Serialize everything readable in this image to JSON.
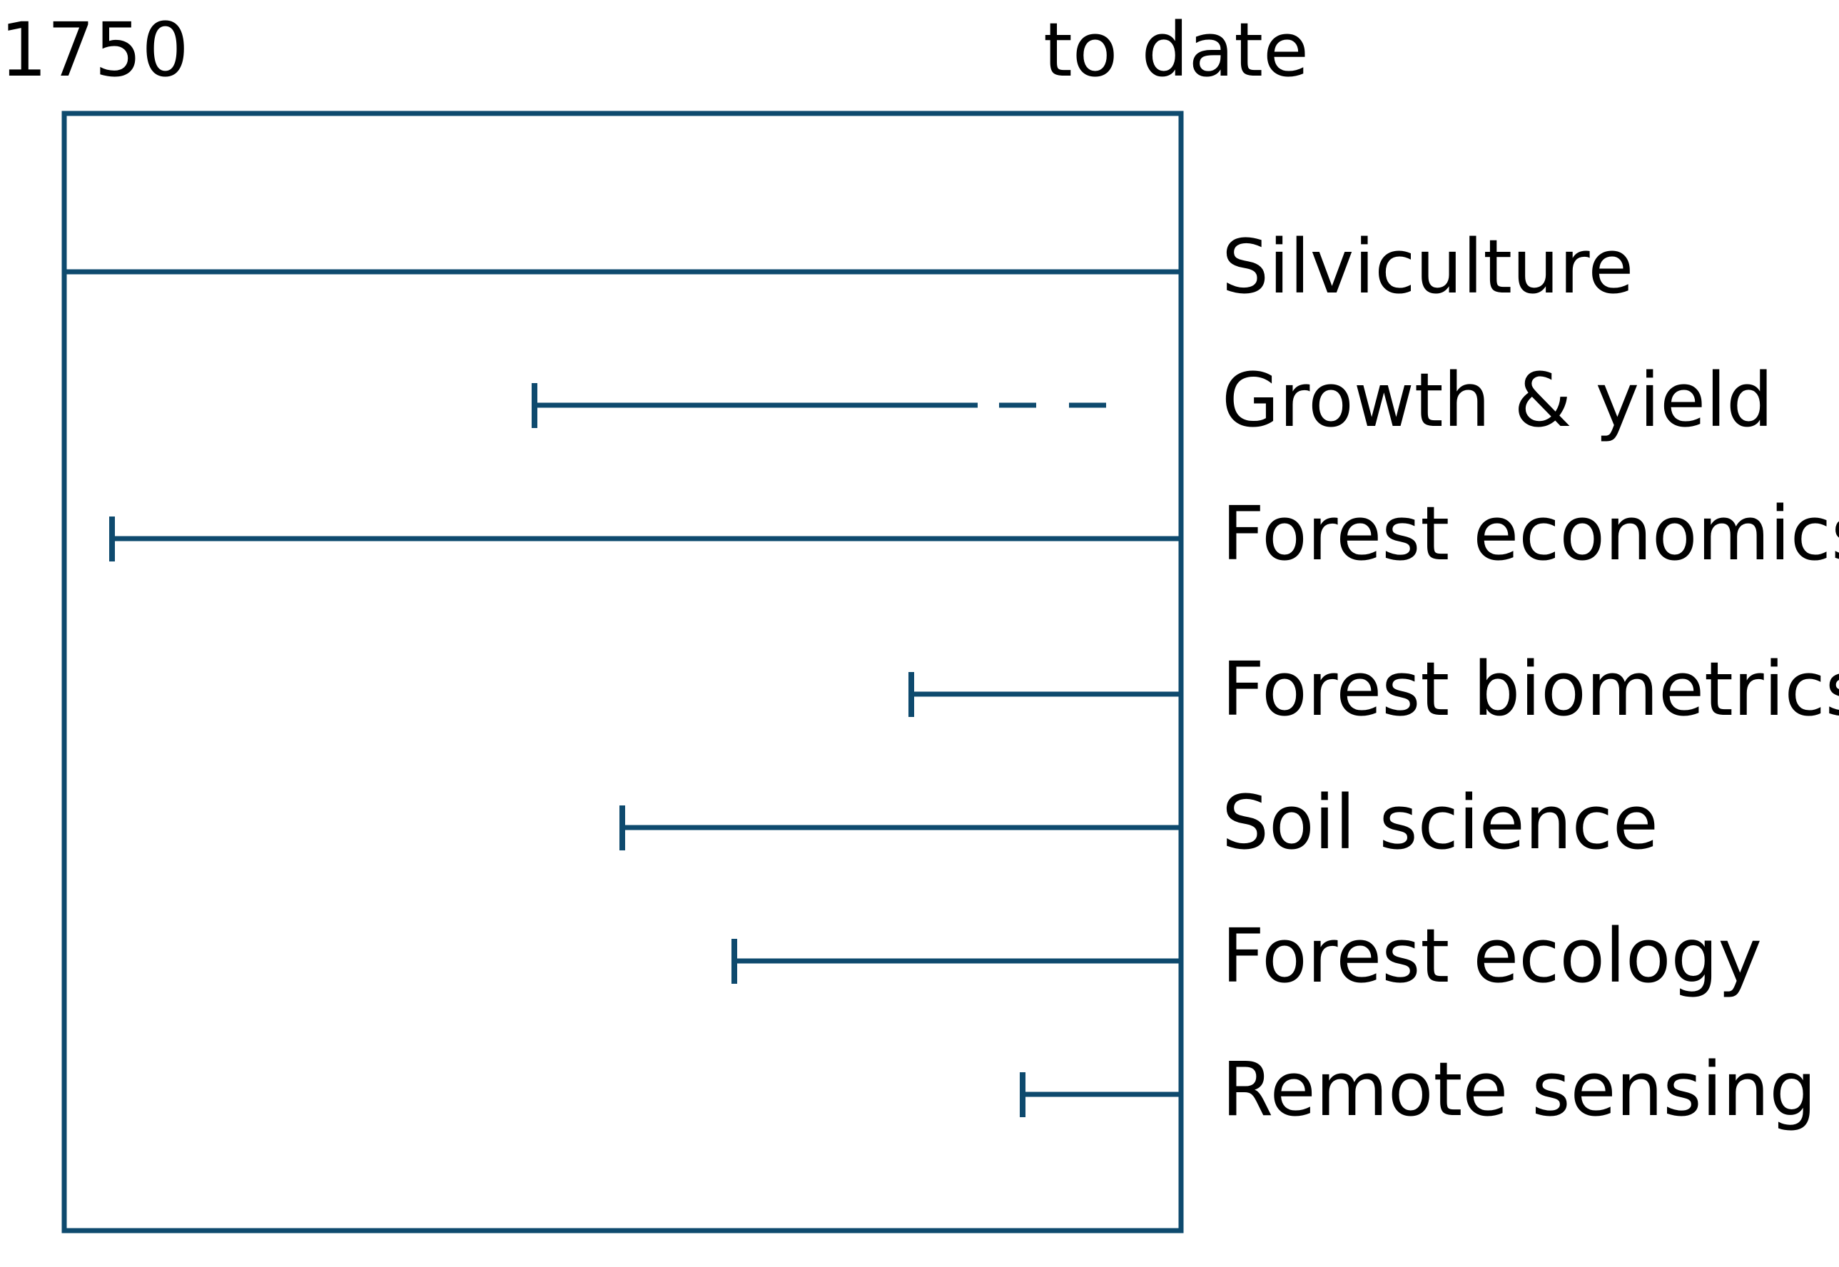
{
  "labels": {
    "start": "1750",
    "end": "to date"
  },
  "colors": {
    "line": "#0e4a6e",
    "text": "#000000",
    "background": "#ffffff"
  },
  "disciplines": [
    {
      "name": "Silviculture",
      "span": "full"
    },
    {
      "name": "Growth & yield",
      "span": "partial",
      "ends_dashed": true
    },
    {
      "name": "Forest economics",
      "span": "partial"
    },
    {
      "name": "Forest biometrics",
      "span": "partial"
    },
    {
      "name": "Soil science",
      "span": "partial"
    },
    {
      "name": "Forest ecology",
      "span": "partial"
    },
    {
      "name": "Remote sensing",
      "span": "partial"
    }
  ]
}
